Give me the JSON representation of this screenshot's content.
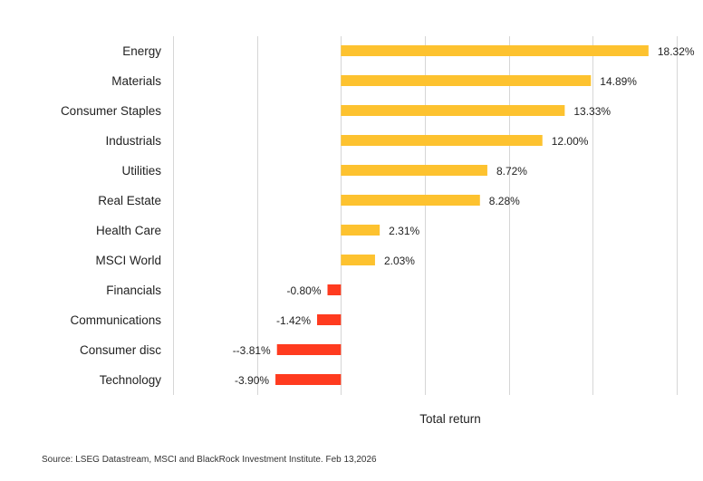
{
  "chart_data": {
    "type": "bar",
    "orientation": "horizontal",
    "categories": [
      "Energy",
      "Materials",
      "Consumer Staples",
      "Industrials",
      "Utilities",
      "Real Estate",
      "Health Care",
      "MSCI World",
      "Financials",
      "Communications",
      "Consumer disc",
      "Technology"
    ],
    "values": [
      18.32,
      14.89,
      13.33,
      12.0,
      8.72,
      8.28,
      2.31,
      2.03,
      -0.8,
      -1.42,
      -3.81,
      -3.9
    ],
    "data_labels": [
      "18.32%",
      "14.89%",
      "13.33%",
      "12.00%",
      "8.72%",
      "8.28%",
      "2.31%",
      "2.03%",
      "-0.80%",
      "-1.42%",
      "--3.81%",
      "-3.90%"
    ],
    "xlabel": "Total return",
    "ylabel": "",
    "xlim": [
      -10,
      20
    ],
    "grid": true,
    "colors": {
      "positive": "#FDC22F",
      "negative": "#FF3B1F",
      "grid": "#d6d6d6"
    }
  },
  "source_note": "Source: LSEG Datastream, MSCI and BlackRock Investment Institute. Feb 13,2026"
}
